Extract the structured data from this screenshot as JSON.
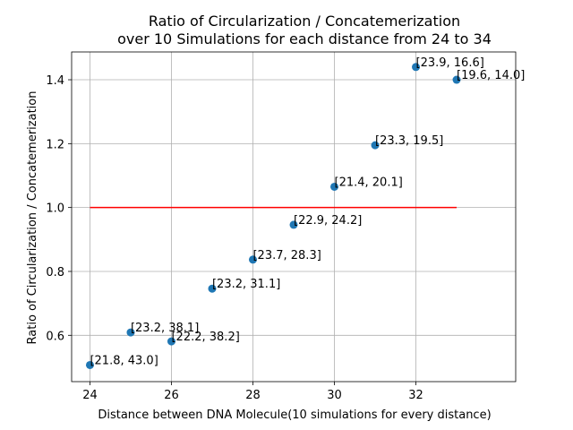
{
  "chart_data": {
    "type": "scatter",
    "title_lines": [
      "Ratio of Circularization / Concatemerization",
      "over 10 Simulations for each distance from 24 to 34"
    ],
    "xlabel": "Distance between DNA Molecule(10 simulations for every distance)",
    "ylabel": "Ratio of Circularization / Concatemerization",
    "xlim": [
      23.55,
      34.45
    ],
    "ylim": [
      0.455,
      1.487
    ],
    "x_ticks": [
      24,
      26,
      28,
      30,
      32
    ],
    "x_tick_labels": [
      "24",
      "26",
      "28",
      "30",
      "32"
    ],
    "y_ticks": [
      0.6,
      0.8,
      1.0,
      1.2,
      1.4
    ],
    "y_tick_labels": [
      "0.6",
      "0.8",
      "1.0",
      "1.2",
      "1.4"
    ],
    "grid": true,
    "point_color": "#1f77b4",
    "points": [
      {
        "x": 24,
        "y": 0.507,
        "label": "[21.8, 43.0]"
      },
      {
        "x": 25,
        "y": 0.609,
        "label": "[23.2, 38.1]"
      },
      {
        "x": 26,
        "y": 0.581,
        "label": "[22.2, 38.2]"
      },
      {
        "x": 27,
        "y": 0.746,
        "label": "[23.2, 31.1]"
      },
      {
        "x": 28,
        "y": 0.837,
        "label": "[23.7, 28.3]"
      },
      {
        "x": 29,
        "y": 0.946,
        "label": "[22.9, 24.2]"
      },
      {
        "x": 30,
        "y": 1.065,
        "label": "[21.4, 20.1]"
      },
      {
        "x": 31,
        "y": 1.195,
        "label": "[23.3, 19.5]"
      },
      {
        "x": 32,
        "y": 1.44,
        "label": "[23.9, 16.6]"
      },
      {
        "x": 33,
        "y": 1.4,
        "label": "[19.6, 14.0]"
      }
    ],
    "reference_line": {
      "x": [
        24,
        33
      ],
      "y": 1.0,
      "color": "#ff0000"
    }
  }
}
